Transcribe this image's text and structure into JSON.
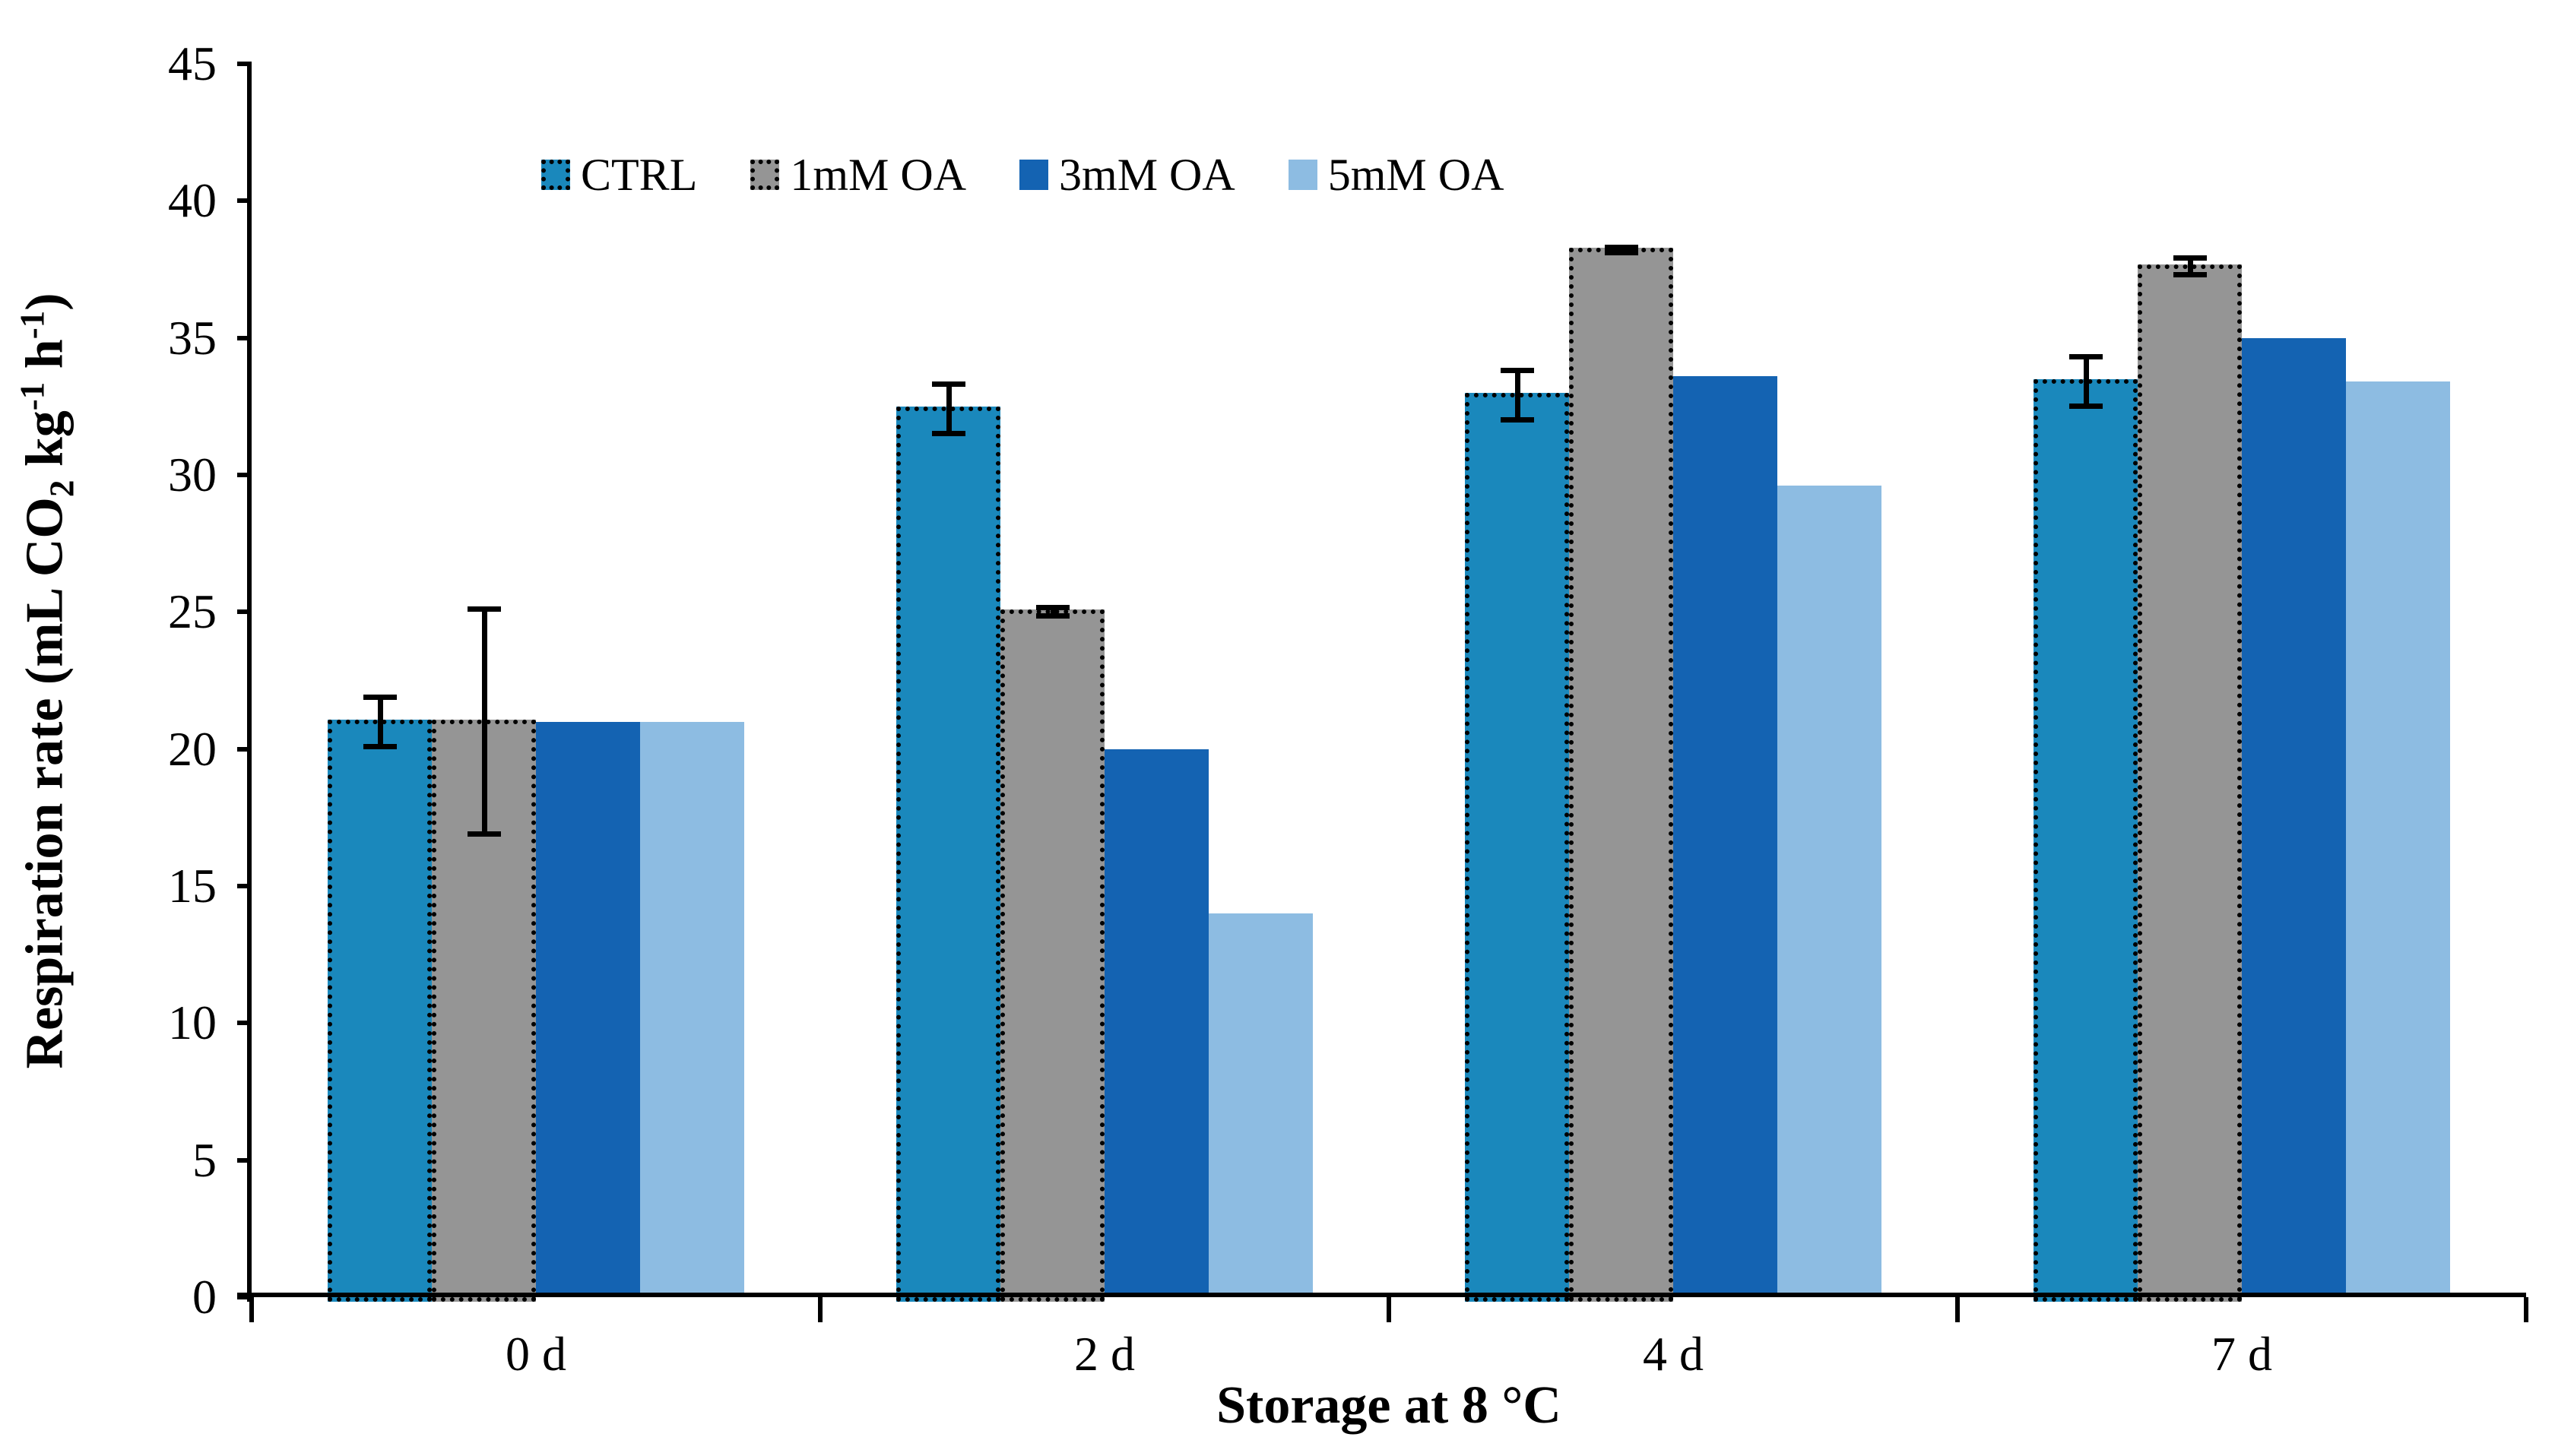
{
  "chart_data": {
    "type": "bar",
    "title": "",
    "categories": [
      "0 d",
      "2 d",
      "4 d",
      "7 d"
    ],
    "series": [
      {
        "name": "CTRL",
        "color": "#1A88BC",
        "border": "dotted",
        "values": [
          21.0,
          32.4,
          32.9,
          33.4
        ],
        "errors": [
          1.0,
          1.0,
          1.0,
          1.0
        ]
      },
      {
        "name": "1mM OA",
        "color": "#959595",
        "border": "dotted",
        "values": [
          21.0,
          25.0,
          38.2,
          37.6
        ],
        "errors": [
          4.2,
          0.25,
          0.2,
          0.4
        ]
      },
      {
        "name": "3mM OA",
        "color": "#1463B2",
        "border": "none",
        "values": [
          21.0,
          20.0,
          33.6,
          35.0
        ],
        "errors": [
          0,
          0,
          0,
          0
        ]
      },
      {
        "name": "5mM OA",
        "color": "#8DBCE2",
        "border": "none",
        "values": [
          21.0,
          14.0,
          29.6,
          33.4
        ],
        "errors": [
          0,
          0,
          0,
          0
        ]
      }
    ],
    "xlabel": "Storage at 8 °C",
    "ylabel_text": "Respiration rate (mL CO2 kg-1 h-1)",
    "ylabel_parts": [
      {
        "t": "Respiration rate (mL CO",
        "style": "normal"
      },
      {
        "t": "2",
        "style": "sub"
      },
      {
        "t": " kg",
        "style": "normal"
      },
      {
        "t": "-1",
        "style": "sup"
      },
      {
        "t": " h",
        "style": "normal"
      },
      {
        "t": "-1",
        "style": "sup"
      },
      {
        "t": ")",
        "style": "normal"
      }
    ],
    "ylim": [
      0,
      45
    ],
    "yticks": [
      0,
      5,
      10,
      15,
      20,
      25,
      30,
      35,
      40,
      45
    ],
    "grid": false,
    "legend_position": "top-center-left",
    "error_bar_color": "#000000",
    "axis_color": "#000000",
    "background": "#FFFFFF"
  }
}
